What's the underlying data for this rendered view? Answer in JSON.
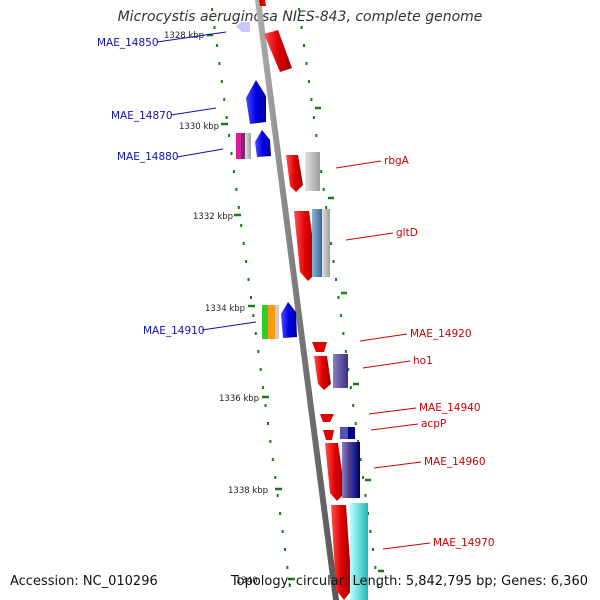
{
  "title": "Microcystis aeruginosa NIES-843, complete genome",
  "accession": "Accession: NC_010296",
  "summary": "Topology: circular; Length: 5,842,795 bp; Genes: 6,360",
  "ticks": [
    {
      "label": "1328 kbp"
    },
    {
      "label": "1330 kbp"
    },
    {
      "label": "1332 kbp"
    },
    {
      "label": "1334 kbp"
    },
    {
      "label": "1336 kbp"
    },
    {
      "label": "1338 kbp"
    },
    {
      "label": "1340"
    }
  ],
  "left_genes": [
    {
      "label": "MAE_14850"
    },
    {
      "label": "MAE_14870"
    },
    {
      "label": "MAE_14880"
    },
    {
      "label": "MAE_14910"
    }
  ],
  "right_genes": [
    {
      "label": "rbgA"
    },
    {
      "label": "gltD"
    },
    {
      "label": "MAE_14920"
    },
    {
      "label": "ho1"
    },
    {
      "label": "MAE_14940"
    },
    {
      "label": "acpP"
    },
    {
      "label": "MAE_14960"
    },
    {
      "label": "MAE_14970"
    }
  ],
  "colors": {
    "forward": "#e00000",
    "reverse": "#0000ee",
    "backbone": "#8a8a8a",
    "tick": "#1a7a1a",
    "left_label": "#1010b0",
    "right_label": "#cc0000"
  }
}
